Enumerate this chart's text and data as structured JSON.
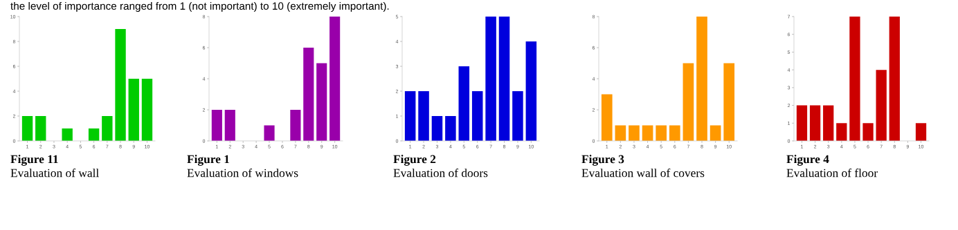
{
  "chart_data": [
    {
      "type": "bar",
      "title": "Figure 11",
      "subtitle": "Evaluation of wall",
      "annotations": [
        "the level of importance ranged from 1 (not important) to 10 (extremely important)."
      ],
      "categories": [
        "1",
        "2",
        "3",
        "4",
        "5",
        "6",
        "7",
        "8",
        "9",
        "10"
      ],
      "values": [
        2,
        2,
        0,
        1,
        0,
        1,
        2,
        9,
        5,
        5
      ],
      "color": "#00cc00",
      "ylim": [
        0,
        10
      ],
      "yticks": [
        0,
        2,
        4,
        6,
        8,
        10
      ],
      "grid": false
    },
    {
      "type": "bar",
      "title": "Figure 1",
      "subtitle": "Evaluation of windows",
      "categories": [
        "1",
        "2",
        "3",
        "4",
        "5",
        "6",
        "7",
        "8",
        "9",
        "10"
      ],
      "values": [
        2,
        2,
        0,
        0,
        1,
        0,
        2,
        6,
        5,
        8
      ],
      "color": "#9900aa",
      "ylim": [
        0,
        8
      ],
      "yticks": [
        0,
        2,
        4,
        6,
        8
      ],
      "grid": false
    },
    {
      "type": "bar",
      "title": "Figure 2",
      "subtitle": "Evaluation of doors",
      "categories": [
        "1",
        "2",
        "3",
        "4",
        "5",
        "6",
        "7",
        "8",
        "9",
        "10"
      ],
      "values": [
        2,
        2,
        1,
        1,
        3,
        2,
        5,
        5,
        2,
        4
      ],
      "color": "#0000dd",
      "ylim": [
        0,
        5
      ],
      "yticks": [
        0,
        1,
        2,
        3,
        4,
        5
      ],
      "grid": false
    },
    {
      "type": "bar",
      "title": "Figure 3",
      "subtitle": "Evaluation wall of covers",
      "categories": [
        "1",
        "2",
        "3",
        "4",
        "5",
        "6",
        "7",
        "8",
        "9",
        "10"
      ],
      "values": [
        3,
        1,
        1,
        1,
        1,
        1,
        5,
        8,
        1,
        5
      ],
      "color": "#ff9900",
      "ylim": [
        0,
        8
      ],
      "yticks": [
        0,
        2,
        4,
        6,
        8
      ],
      "grid": false
    },
    {
      "type": "bar",
      "title": "Figure 4",
      "subtitle": "Evaluation of floor",
      "categories": [
        "1",
        "2",
        "3",
        "4",
        "5",
        "6",
        "7",
        "8",
        "9",
        "10"
      ],
      "values": [
        2,
        2,
        2,
        1,
        7,
        1,
        4,
        7,
        0,
        1
      ],
      "color": "#cc0000",
      "ylim": [
        0,
        7
      ],
      "yticks": [
        0,
        1,
        2,
        3,
        4,
        5,
        6,
        7
      ],
      "grid": false
    }
  ]
}
